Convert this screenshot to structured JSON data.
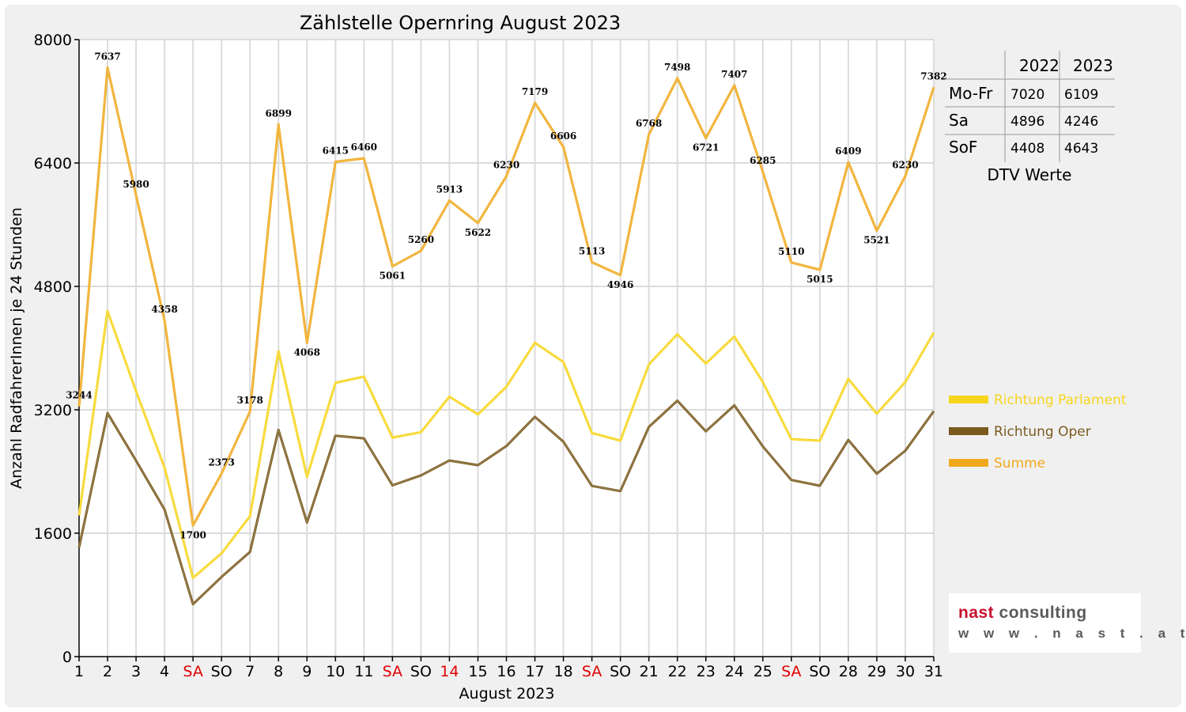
{
  "chart_data": {
    "type": "line",
    "title": "Zählstelle Opernring August 2023",
    "xlabel": "August 2023",
    "ylabel": "Anzahl RadfahrerInnen je 24 Stunden",
    "ylim": [
      0,
      8000
    ],
    "yticks": [
      "0",
      "1600",
      "3200",
      "4800",
      "6400",
      "8000"
    ],
    "grid": true,
    "legend_position": "right",
    "categories": [
      "1",
      "2",
      "3",
      "4",
      "SA",
      "SO",
      "7",
      "8",
      "9",
      "10",
      "11",
      "SA",
      "SO",
      "14",
      "15",
      "16",
      "17",
      "18",
      "SA",
      "SO",
      "21",
      "22",
      "23",
      "24",
      "25",
      "SA",
      "SO",
      "28",
      "29",
      "30",
      "31"
    ],
    "red_categories": [
      5,
      12,
      14,
      19,
      26
    ],
    "series": [
      {
        "name": "Richtung Parlament",
        "color": "#f7d51d",
        "values": [
          1830,
          4480,
          3440,
          2450,
          1020,
          1340,
          1820,
          3960,
          2330,
          3550,
          3630,
          2840,
          2910,
          3370,
          3140,
          3500,
          4070,
          3820,
          2900,
          2800,
          3790,
          4180,
          3800,
          4150,
          3560,
          2820,
          2800,
          3600,
          3150,
          3560,
          4200
        ]
      },
      {
        "name": "Richtung Oper",
        "color": "#7a5a1e",
        "values": [
          1414,
          3157,
          2540,
          1908,
          680,
          1033,
          1358,
          2939,
          1738,
          2865,
          2830,
          2221,
          2350,
          2543,
          2482,
          2730,
          3109,
          2786,
          2213,
          2146,
          2978,
          3318,
          2921,
          3257,
          2725,
          2290,
          2215,
          2809,
          2371,
          2670,
          3182
        ]
      },
      {
        "name": "Summe",
        "color": "#f0a91e",
        "values": [
          3244,
          7637,
          5980,
          4358,
          1700,
          2373,
          3178,
          6899,
          4068,
          6415,
          6460,
          5061,
          5260,
          5913,
          5622,
          6230,
          7179,
          6606,
          5113,
          4946,
          6768,
          7498,
          6721,
          7407,
          6285,
          5110,
          5015,
          6409,
          5521,
          6230,
          7382
        ]
      }
    ]
  },
  "dtv_table": {
    "caption": "DTV Werte",
    "headers": [
      "",
      "2022",
      "2023"
    ],
    "rows": [
      [
        "Mo-Fr",
        "7020",
        "6109"
      ],
      [
        "Sa",
        "4896",
        "4246"
      ],
      [
        "SoF",
        "4408",
        "4643"
      ]
    ]
  },
  "logo": {
    "name_part1": "nast",
    "name_part2": " consulting",
    "url": "w w w . n a s t . a t"
  }
}
